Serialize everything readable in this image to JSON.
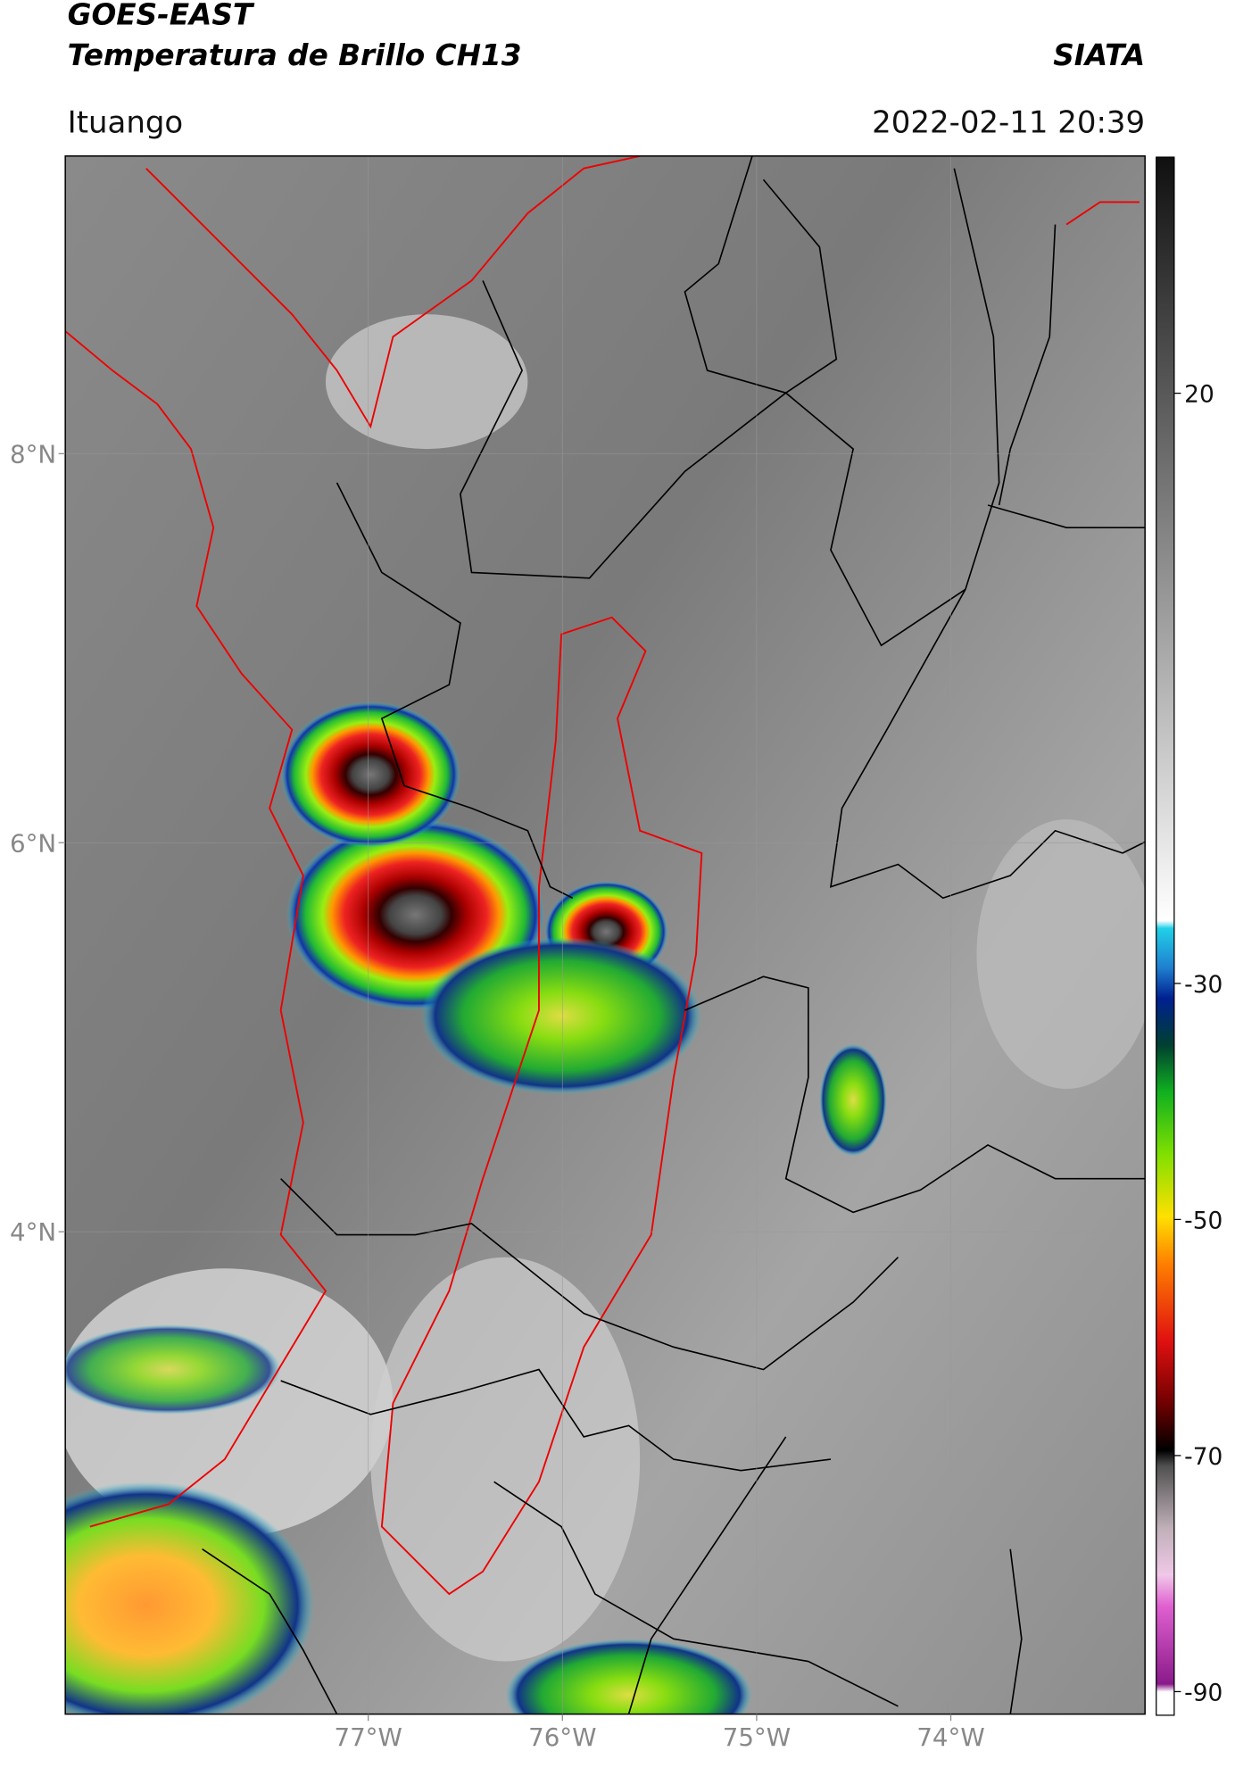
{
  "chart_data": {
    "type": "map",
    "title": "GOES-EAST",
    "subtitle": "Temperatura de Brillo CH13",
    "source": "SIATA",
    "location": "Ituango",
    "timestamp": "2022-02-11 20:39",
    "xlim": [
      -78.56,
      -73.0
    ],
    "ylim": [
      1.52,
      9.53
    ],
    "xticks": [
      {
        "value": -77,
        "label": "77°W"
      },
      {
        "value": -76,
        "label": "76°W"
      },
      {
        "value": -75,
        "label": "75°W"
      },
      {
        "value": -74,
        "label": "74°W"
      }
    ],
    "yticks": [
      {
        "value": 4,
        "label": "4°N"
      },
      {
        "value": 6,
        "label": "6°N"
      },
      {
        "value": 8,
        "label": "8°N"
      }
    ],
    "grid": true,
    "colorbar": {
      "lim": [
        -92,
        40
      ],
      "ticks": [
        20,
        -30,
        -50,
        -70,
        -90
      ]
    }
  }
}
